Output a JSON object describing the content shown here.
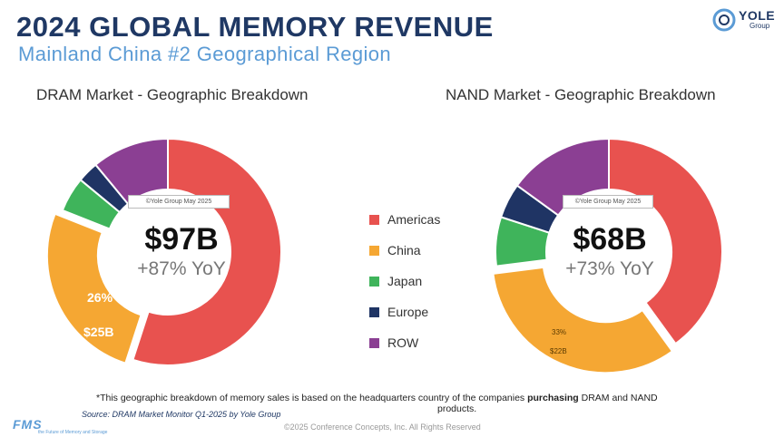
{
  "header": {
    "title": "2024 GLOBAL MEMORY REVENUE",
    "subtitle": "Mainland China #2 Geographical Region"
  },
  "logo": {
    "name": "YOLE",
    "sub": "Group"
  },
  "legend": [
    {
      "label": "Americas",
      "color": "#e8524f"
    },
    {
      "label": "China",
      "color": "#f5a733"
    },
    {
      "label": "Japan",
      "color": "#3fb45b"
    },
    {
      "label": "Europe",
      "color": "#1f3464"
    },
    {
      "label": "ROW",
      "color": "#8b3f93"
    }
  ],
  "chart_data": [
    {
      "type": "pie",
      "title": "DRAM Market - Geographic Breakdown",
      "total_label": "$97B",
      "yoy_label": "+87% YoY",
      "watermark": "©Yole Group May 2025",
      "categories": [
        "Americas",
        "China",
        "Japan",
        "Europe",
        "ROW"
      ],
      "values": [
        55,
        26,
        5,
        3,
        11
      ],
      "units": "% share",
      "annotations": {
        "china_pct": "26%",
        "china_value": "$25B"
      }
    },
    {
      "type": "pie",
      "title": "NAND Market - Geographic Breakdown",
      "total_label": "$68B",
      "yoy_label": "+73% YoY",
      "watermark": "©Yole Group May 2025",
      "categories": [
        "Americas",
        "China",
        "Japan",
        "Europe",
        "ROW"
      ],
      "values": [
        40,
        33,
        7,
        5,
        15
      ],
      "units": "% share",
      "annotations": {
        "china_pct": "33%",
        "china_value": "$22B"
      }
    }
  ],
  "footer": {
    "footnote_pre": "*This geographic breakdown of memory sales is based on the headquarters country of the companies ",
    "footnote_bold": "purchasing",
    "footnote_post": " DRAM and NAND",
    "footnote_line2": "products.",
    "source": "Source: DRAM Market Monitor Q1-2025 by Yole Group",
    "copyright": "©2025 Conference Concepts, Inc. All Rights Reserved",
    "fms_logo": "FMS",
    "fms_sub": "the Future of Memory and Storage"
  }
}
